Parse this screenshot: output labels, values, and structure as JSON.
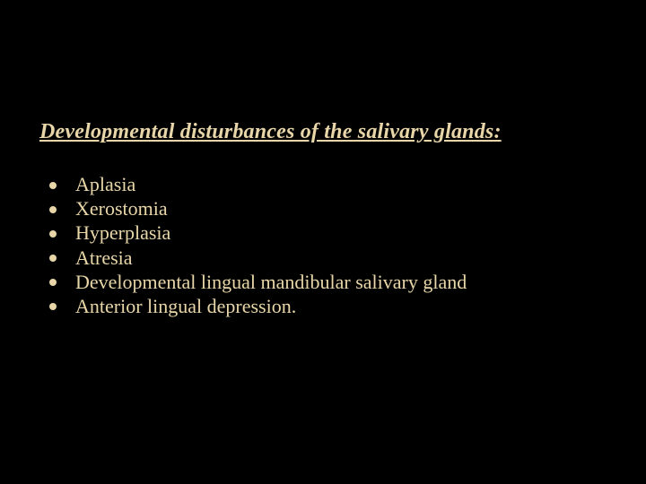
{
  "slide": {
    "title": "Developmental disturbances of the salivary glands:",
    "items": [
      "Aplasia",
      "Xerostomia",
      "Hyperplasia",
      "Atresia",
      "Developmental lingual mandibular salivary gland",
      "Anterior lingual depression."
    ],
    "colors": {
      "background": "#000000",
      "text": "#e8d6a8",
      "bullet": "#e8d6a8"
    },
    "typography": {
      "title_fontsize": 24,
      "title_style": "italic bold underline",
      "item_fontsize": 22,
      "font_family": "Times New Roman"
    }
  }
}
